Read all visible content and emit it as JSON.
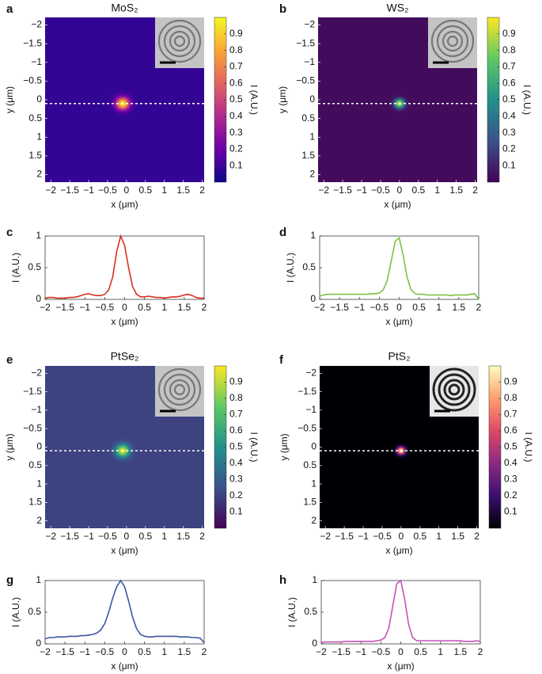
{
  "chart_data": [
    {
      "type": "heatmap",
      "panel": "a",
      "title": "MoS₂",
      "colormap": "plasma",
      "background_level": 0.08,
      "spot": {
        "x": -0.1,
        "y": 0.1,
        "size": 0.22
      },
      "line_y": 0.1,
      "xlim": [
        -2.15,
        2.05
      ],
      "ylim": [
        -2.2,
        2.2
      ],
      "y_reversed": true,
      "clim": [
        0,
        1
      ],
      "xticks": [
        {
          "value": -2,
          "label": "−2"
        },
        {
          "value": -1.5,
          "label": "−1.5"
        },
        {
          "value": -1,
          "label": "−1"
        },
        {
          "value": -0.5,
          "label": "−0.5"
        },
        0,
        0.5,
        1,
        1.5,
        2
      ],
      "yticks": [
        {
          "value": -2,
          "label": "−2"
        },
        {
          "value": -1.5,
          "label": "−1.5"
        },
        {
          "value": -1,
          "label": "−1"
        },
        {
          "value": -0.5,
          "label": "−0.5"
        },
        0,
        0.5,
        1,
        1.5,
        2
      ],
      "cticks": [
        0.1,
        0.2,
        0.3,
        0.4,
        0.5,
        0.6,
        0.7,
        0.8,
        0.9
      ],
      "xlabel": "x (μm)",
      "ylabel": "y (μm)",
      "clabel": "I (A.U.)"
    },
    {
      "type": "heatmap",
      "panel": "b",
      "title": "WS₂",
      "colormap": "viridis",
      "background_level": 0.03,
      "spot": {
        "x": 0,
        "y": 0.1,
        "size": 0.16
      },
      "line_y": 0.1,
      "xlim": [
        -2.15,
        2.05
      ],
      "ylim": [
        -2.2,
        2.2
      ],
      "y_reversed": true,
      "clim": [
        0,
        1
      ],
      "xticks": [
        {
          "value": -2,
          "label": "−2"
        },
        {
          "value": -1.5,
          "label": "−1.5"
        },
        {
          "value": -1,
          "label": "−1"
        },
        {
          "value": -0.5,
          "label": "−0.5"
        },
        0,
        0.5,
        1,
        1.5,
        2
      ],
      "yticks": [
        {
          "value": -2,
          "label": "−2"
        },
        {
          "value": -1.5,
          "label": "−1.5"
        },
        {
          "value": -1,
          "label": "−1"
        },
        {
          "value": -0.5,
          "label": "−0.5"
        },
        0,
        0.5,
        1,
        1.5,
        2
      ],
      "cticks": [
        0.1,
        0.2,
        0.3,
        0.4,
        0.5,
        0.6,
        0.7,
        0.8,
        0.9
      ],
      "xlabel": "x (μm)",
      "ylabel": "y (μm)",
      "clabel": "I (A.U.)"
    },
    {
      "type": "line",
      "panel": "c",
      "color": "#d7301f",
      "x": [
        -2,
        -1.9,
        -1.8,
        -1.7,
        -1.6,
        -1.5,
        -1.4,
        -1.3,
        -1.2,
        -1.1,
        -1,
        -0.9,
        -0.8,
        -0.7,
        -0.6,
        -0.5,
        -0.4,
        -0.3,
        -0.2,
        -0.1,
        0,
        0.1,
        0.2,
        0.3,
        0.4,
        0.5,
        0.6,
        0.7,
        0.8,
        0.9,
        1,
        1.1,
        1.2,
        1.3,
        1.4,
        1.5,
        1.6,
        1.7,
        1.8,
        1.9,
        2
      ],
      "values": [
        0.02,
        0.03,
        0.03,
        0.02,
        0.02,
        0.02,
        0.03,
        0.03,
        0.04,
        0.06,
        0.08,
        0.09,
        0.07,
        0.06,
        0.06,
        0.08,
        0.15,
        0.35,
        0.75,
        1.0,
        0.85,
        0.5,
        0.2,
        0.08,
        0.04,
        0.04,
        0.05,
        0.04,
        0.03,
        0.03,
        0.02,
        0.03,
        0.04,
        0.04,
        0.05,
        0.07,
        0.08,
        0.06,
        0.03,
        0.02,
        0.02
      ],
      "xlim": [
        -2,
        2
      ],
      "ylim": [
        0,
        1
      ],
      "xticks": [
        {
          "value": -2,
          "label": "−2"
        },
        {
          "value": -1.5,
          "label": "−1.5"
        },
        {
          "value": -1,
          "label": "−1"
        },
        {
          "value": -0.5,
          "label": "−0.5"
        },
        0,
        0.5,
        1,
        1.5,
        2
      ],
      "yticks": [
        0,
        0.5,
        1
      ],
      "xlabel": "x (μm)",
      "ylabel": "I (A.U.)"
    },
    {
      "type": "line",
      "panel": "d",
      "color": "#7cc242",
      "x": [
        -2,
        -1.9,
        -1.8,
        -1.7,
        -1.6,
        -1.5,
        -1.4,
        -1.3,
        -1.2,
        -1.1,
        -1,
        -0.9,
        -0.8,
        -0.7,
        -0.6,
        -0.5,
        -0.4,
        -0.3,
        -0.2,
        -0.1,
        0,
        0.1,
        0.2,
        0.3,
        0.4,
        0.5,
        0.6,
        0.7,
        0.8,
        0.9,
        1,
        1.1,
        1.2,
        1.3,
        1.4,
        1.5,
        1.6,
        1.7,
        1.8,
        1.9,
        2
      ],
      "values": [
        0.05,
        0.07,
        0.08,
        0.08,
        0.08,
        0.08,
        0.08,
        0.08,
        0.08,
        0.08,
        0.08,
        0.08,
        0.08,
        0.09,
        0.09,
        0.1,
        0.15,
        0.3,
        0.6,
        0.92,
        0.97,
        0.7,
        0.35,
        0.15,
        0.09,
        0.08,
        0.08,
        0.07,
        0.07,
        0.07,
        0.07,
        0.07,
        0.07,
        0.06,
        0.07,
        0.07,
        0.07,
        0.07,
        0.08,
        0.09,
        0.0
      ],
      "xlim": [
        -2,
        2
      ],
      "ylim": [
        0,
        1
      ],
      "xticks": [
        {
          "value": -2,
          "label": "−2"
        },
        {
          "value": -1.5,
          "label": "−1.5"
        },
        {
          "value": -1,
          "label": "−1"
        },
        {
          "value": -0.5,
          "label": "−0.5"
        },
        0,
        0.5,
        1,
        1.5,
        2
      ],
      "yticks": [
        0,
        0.5,
        1
      ],
      "xlabel": "x (μm)",
      "ylabel": "I (A.U.)"
    },
    {
      "type": "heatmap",
      "panel": "e",
      "title": "PtSe₂",
      "colormap": "viridis",
      "background_level": 0.2,
      "spot": {
        "x": -0.1,
        "y": 0.1,
        "size": 0.22
      },
      "line_y": 0.1,
      "xlim": [
        -2.15,
        2.05
      ],
      "ylim": [
        -2.2,
        2.2
      ],
      "y_reversed": true,
      "clim": [
        0,
        1
      ],
      "xticks": [
        {
          "value": -2,
          "label": "−2"
        },
        {
          "value": -1.5,
          "label": "−1.5"
        },
        {
          "value": -1,
          "label": "−1"
        },
        {
          "value": -0.5,
          "label": "−0.5"
        },
        0,
        0.5,
        1,
        1.5,
        2
      ],
      "yticks": [
        {
          "value": -2,
          "label": "−2"
        },
        {
          "value": -1.5,
          "label": "−1.5"
        },
        {
          "value": -1,
          "label": "−1"
        },
        {
          "value": -0.5,
          "label": "−0.5"
        },
        0,
        0.5,
        1,
        1.5,
        2
      ],
      "cticks": [
        0.1,
        0.2,
        0.3,
        0.4,
        0.5,
        0.6,
        0.7,
        0.8,
        0.9
      ],
      "xlabel": "x (μm)",
      "ylabel": "y (μm)",
      "clabel": "I (A.U.)"
    },
    {
      "type": "heatmap",
      "panel": "f",
      "title": "PtS₂",
      "colormap": "magma",
      "background_level": 0.0,
      "spot": {
        "x": 0,
        "y": 0.1,
        "size": 0.14
      },
      "line_y": 0.1,
      "xlim": [
        -2.15,
        2.05
      ],
      "ylim": [
        -2.2,
        2.2
      ],
      "y_reversed": true,
      "clim": [
        0,
        1
      ],
      "xticks": [
        {
          "value": -2,
          "label": "−2"
        },
        {
          "value": -1.5,
          "label": "−1.5"
        },
        {
          "value": -1,
          "label": "−1"
        },
        {
          "value": -0.5,
          "label": "−0.5"
        },
        0,
        0.5,
        1,
        1.5,
        2
      ],
      "yticks": [
        {
          "value": -2,
          "label": "−2"
        },
        {
          "value": -1.5,
          "label": "−1.5"
        },
        {
          "value": -1,
          "label": "−1"
        },
        {
          "value": -0.5,
          "label": "−0.5"
        },
        0,
        0.5,
        1,
        1.5,
        2
      ],
      "cticks": [
        0.1,
        0.2,
        0.3,
        0.4,
        0.5,
        0.6,
        0.7,
        0.8,
        0.9
      ],
      "xlabel": "x (μm)",
      "ylabel": "y (μm)",
      "clabel": "I (A.U.)"
    },
    {
      "type": "line",
      "panel": "g",
      "color": "#3c55a5",
      "x": [
        -2,
        -1.9,
        -1.8,
        -1.7,
        -1.6,
        -1.5,
        -1.4,
        -1.3,
        -1.2,
        -1.1,
        -1,
        -0.9,
        -0.8,
        -0.7,
        -0.6,
        -0.5,
        -0.4,
        -0.3,
        -0.2,
        -0.1,
        0,
        0.1,
        0.2,
        0.3,
        0.4,
        0.5,
        0.6,
        0.7,
        0.8,
        0.9,
        1,
        1.1,
        1.2,
        1.3,
        1.4,
        1.5,
        1.6,
        1.7,
        1.8,
        1.9,
        2
      ],
      "values": [
        0.08,
        0.1,
        0.1,
        0.11,
        0.11,
        0.11,
        0.12,
        0.12,
        0.12,
        0.13,
        0.13,
        0.14,
        0.15,
        0.17,
        0.22,
        0.32,
        0.5,
        0.72,
        0.9,
        1.0,
        0.9,
        0.68,
        0.42,
        0.24,
        0.15,
        0.12,
        0.11,
        0.11,
        0.12,
        0.12,
        0.12,
        0.12,
        0.12,
        0.12,
        0.11,
        0.11,
        0.11,
        0.1,
        0.1,
        0.09,
        0.02
      ],
      "xlim": [
        -2,
        2
      ],
      "ylim": [
        0,
        1
      ],
      "xticks": [
        {
          "value": -2,
          "label": "−2"
        },
        {
          "value": -1.5,
          "label": "−1.5"
        },
        {
          "value": -1,
          "label": "−1"
        },
        {
          "value": -0.5,
          "label": "−0.5"
        },
        0,
        0.5,
        1,
        1.5,
        2
      ],
      "yticks": [
        0,
        0.5,
        1
      ],
      "xlabel": "x (μm)",
      "ylabel": "I (A.U.)"
    },
    {
      "type": "line",
      "panel": "h",
      "color": "#c451b8",
      "x": [
        -2,
        -1.9,
        -1.8,
        -1.7,
        -1.6,
        -1.5,
        -1.4,
        -1.3,
        -1.2,
        -1.1,
        -1,
        -0.9,
        -0.8,
        -0.7,
        -0.6,
        -0.5,
        -0.4,
        -0.3,
        -0.2,
        -0.1,
        0,
        0.1,
        0.2,
        0.3,
        0.4,
        0.5,
        0.6,
        0.7,
        0.8,
        0.9,
        1,
        1.1,
        1.2,
        1.3,
        1.4,
        1.5,
        1.6,
        1.7,
        1.8,
        1.9,
        2
      ],
      "values": [
        0.02,
        0.03,
        0.03,
        0.03,
        0.03,
        0.03,
        0.04,
        0.04,
        0.04,
        0.04,
        0.04,
        0.04,
        0.04,
        0.04,
        0.05,
        0.06,
        0.1,
        0.25,
        0.6,
        0.95,
        1.0,
        0.7,
        0.3,
        0.1,
        0.05,
        0.05,
        0.05,
        0.05,
        0.05,
        0.05,
        0.05,
        0.05,
        0.05,
        0.05,
        0.05,
        0.05,
        0.04,
        0.04,
        0.04,
        0.05,
        0.04
      ],
      "xlim": [
        -2,
        2
      ],
      "ylim": [
        0,
        1
      ],
      "xticks": [
        {
          "value": -2,
          "label": "−2"
        },
        {
          "value": -1.5,
          "label": "−1.5"
        },
        {
          "value": -1,
          "label": "−1"
        },
        {
          "value": -0.5,
          "label": "−0.5"
        },
        0,
        0.5,
        1,
        1.5,
        2
      ],
      "yticks": [
        0,
        0.5,
        1
      ],
      "xlabel": "x (μm)",
      "ylabel": "I (A.U.)"
    }
  ]
}
